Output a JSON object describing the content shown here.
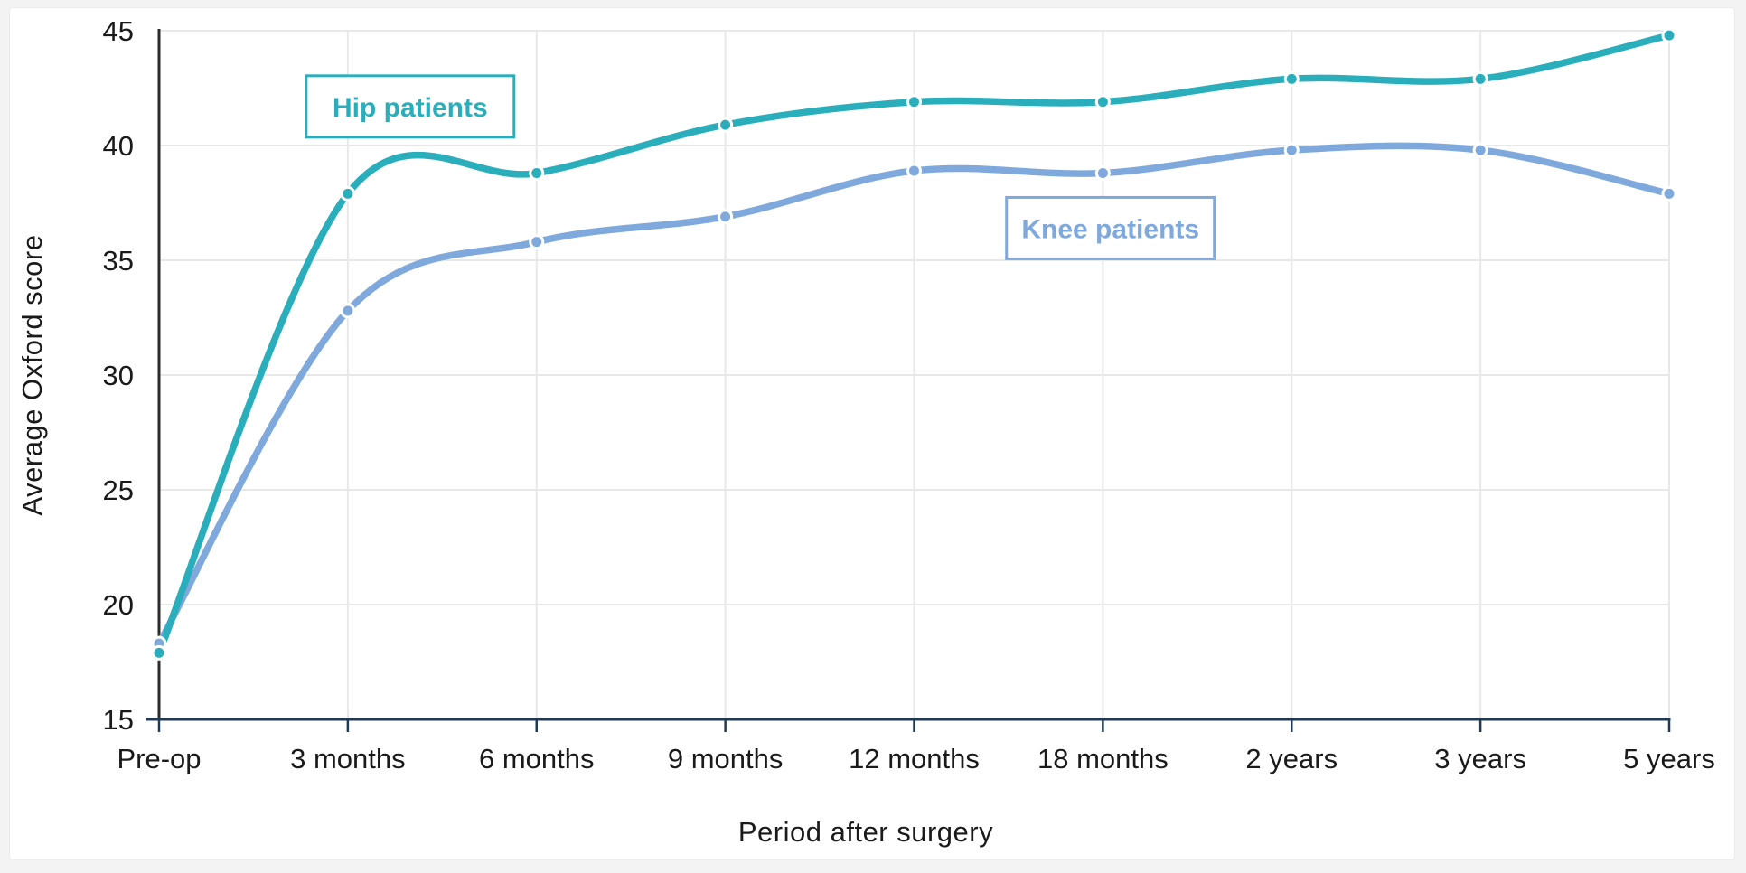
{
  "page": {
    "background": "#f3f3f3",
    "panel_background": "#ffffff"
  },
  "chart_data": {
    "type": "line",
    "title": "",
    "xlabel": "Period after surgery",
    "ylabel": "Average Oxford score",
    "categories": [
      "Pre-op",
      "3 months",
      "6 months",
      "9 months",
      "12 months",
      "18 months",
      "2 years",
      "3 years",
      "5 years"
    ],
    "yticks": [
      15,
      20,
      25,
      30,
      35,
      40,
      45
    ],
    "ylim": [
      15,
      45
    ],
    "grid": true,
    "legend_position": "inline-boxed-labels",
    "line_style": "smoothed",
    "series": [
      {
        "name": "Knee patients",
        "color": "#7FA9DC",
        "values": [
          18.3,
          32.8,
          35.8,
          36.9,
          38.9,
          38.8,
          39.8,
          39.8,
          37.9
        ]
      },
      {
        "name": "Hip patients",
        "color": "#2AAEBC",
        "values": [
          17.9,
          37.9,
          38.8,
          40.9,
          41.9,
          41.9,
          42.9,
          42.9,
          44.8
        ]
      }
    ],
    "annotations": [
      {
        "label": "Hip patients",
        "color": "#2AAEBC",
        "x_index": 1.33,
        "value": 41.7
      },
      {
        "label": "Knee patients",
        "color": "#7FA9DC",
        "x_index": 5.04,
        "value": 36.4
      }
    ],
    "axis_colors": {
      "x_axis": "#1F3A54",
      "y_axis": "#2B2B2B",
      "tick_label": "#1A1A1A",
      "grid": "#E8E8E8"
    }
  }
}
